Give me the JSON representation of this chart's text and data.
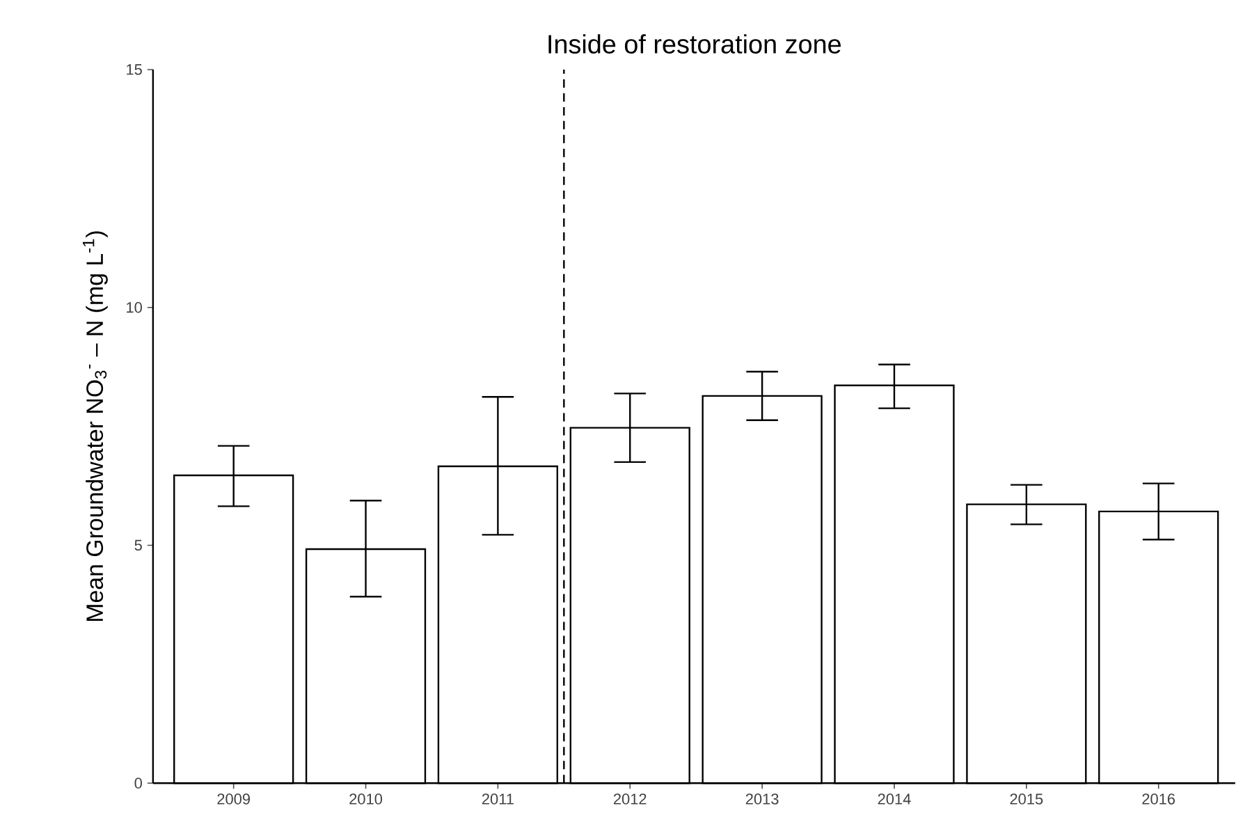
{
  "chart_data": {
    "type": "bar",
    "title": "Inside of restoration zone",
    "ylabel": "Mean Groundwater  NO$_{3}$$^{-}$ – N (mg L$^{-1}$)",
    "categories": [
      "2009",
      "2010",
      "2011",
      "2012",
      "2013",
      "2014",
      "2015",
      "2016"
    ],
    "values": [
      6.47,
      4.92,
      6.66,
      7.47,
      8.14,
      8.36,
      5.86,
      5.71
    ],
    "errors": [
      [
        5.82,
        7.09
      ],
      [
        3.92,
        5.94
      ],
      [
        5.22,
        8.12
      ],
      [
        6.75,
        8.19
      ],
      [
        7.63,
        8.65
      ],
      [
        7.88,
        8.8
      ],
      [
        5.44,
        6.27
      ],
      [
        5.12,
        6.3
      ]
    ],
    "color": "#ffffff",
    "ylim": [
      0,
      15
    ],
    "yticks": [
      0,
      5,
      10,
      15
    ]
  }
}
